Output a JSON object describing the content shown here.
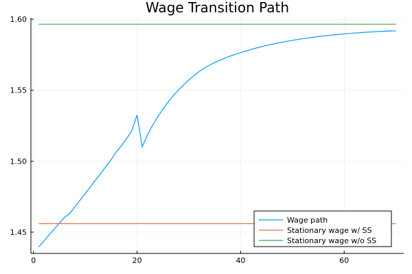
{
  "chart_data": {
    "type": "line",
    "title": "Wage Transition Path",
    "xlabel": "",
    "ylabel": "",
    "xlim": [
      -0.5,
      71.5
    ],
    "ylim": [
      1.435,
      1.601
    ],
    "xticks": [
      0,
      20,
      40,
      60
    ],
    "yticks": [
      1.45,
      1.5,
      1.55,
      1.6
    ],
    "ytick_labels": [
      "1.45",
      "1.50",
      "1.55",
      "1.60"
    ],
    "grid": true,
    "legend_position": "bottom-right",
    "series": [
      {
        "name": "Wage path",
        "color": "#009AFA",
        "x": [
          1,
          2,
          3,
          4,
          5,
          6,
          7,
          8,
          9,
          10,
          11,
          12,
          13,
          14,
          15,
          16,
          17,
          18,
          19,
          20,
          21,
          22,
          23,
          24,
          25,
          26,
          27,
          28,
          29,
          30,
          31,
          32,
          33,
          34,
          35,
          36,
          37,
          38,
          39,
          40,
          41,
          42,
          43,
          44,
          45,
          46,
          47,
          48,
          49,
          50,
          51,
          52,
          53,
          54,
          55,
          56,
          57,
          58,
          59,
          60,
          61,
          62,
          63,
          64,
          65,
          66,
          67,
          68,
          69,
          70
        ],
        "y": [
          1.4395,
          1.4437,
          1.448,
          1.4522,
          1.4563,
          1.4604,
          1.4631,
          1.4678,
          1.4725,
          1.4772,
          1.482,
          1.4868,
          1.4915,
          1.4963,
          1.5011,
          1.5065,
          1.511,
          1.516,
          1.5215,
          1.5325,
          1.51,
          1.5185,
          1.5252,
          1.5313,
          1.5367,
          1.5417,
          1.5462,
          1.5502,
          1.5538,
          1.5572,
          1.5603,
          1.5631,
          1.5656,
          1.5677,
          1.5695,
          1.5711,
          1.5726,
          1.574,
          1.5753,
          1.5765,
          1.5776,
          1.5787,
          1.5797,
          1.5806,
          1.5815,
          1.5823,
          1.5831,
          1.5838,
          1.5845,
          1.5851,
          1.5857,
          1.5863,
          1.5868,
          1.5873,
          1.5878,
          1.5882,
          1.5886,
          1.589,
          1.5893,
          1.5897,
          1.59,
          1.5903,
          1.5905,
          1.5908,
          1.591,
          1.5912,
          1.5914,
          1.5916,
          1.5917,
          1.5918
        ]
      },
      {
        "name": "Stationary wage w/ SS",
        "color": "#E26F46",
        "x": [
          1,
          70
        ],
        "y": [
          1.456,
          1.456
        ]
      },
      {
        "name": "Stationary wage w/o SS",
        "color": "#3DA44D",
        "x": [
          1,
          70
        ],
        "y": [
          1.5965,
          1.5965
        ]
      }
    ]
  }
}
